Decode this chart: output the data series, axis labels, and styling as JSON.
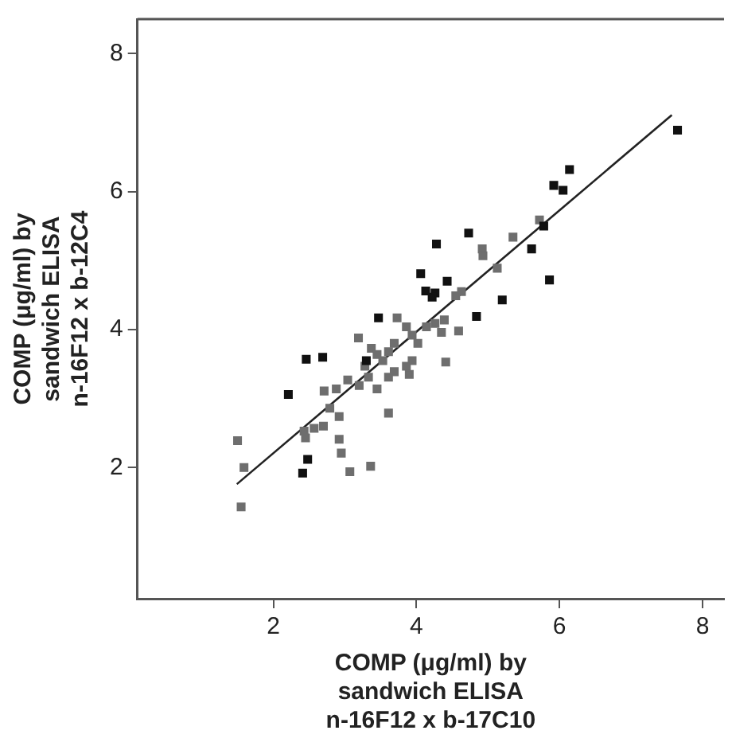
{
  "chart_data": {
    "type": "scatter",
    "xlabel": "COMP (μg/ml) by\nsandwich ELISA\nn-16F12 x b-17C10",
    "ylabel": "COMP (μg/ml) by\nsandwich ELISA\nn-16F12 x b-12C4",
    "xlim": [
      0.1,
      8.3
    ],
    "ylim": [
      0.1,
      8.5
    ],
    "xticks": [
      2,
      4,
      6,
      8
    ],
    "yticks": [
      2,
      4,
      6,
      8
    ],
    "grid": false,
    "legend": false,
    "marker": "square",
    "series": [
      {
        "color": "#111111",
        "x": [
          7.65,
          6.14,
          5.92,
          6.05,
          5.78,
          5.61,
          5.86,
          4.73,
          4.28,
          5.2,
          4.06,
          4.13,
          4.26,
          4.22,
          4.43,
          4.84,
          3.47,
          2.46,
          2.69,
          2.21,
          2.48,
          2.41,
          3.3
        ],
        "values": [
          6.89,
          6.32,
          6.09,
          6.02,
          5.5,
          5.17,
          4.72,
          5.4,
          5.24,
          4.43,
          4.81,
          4.56,
          4.53,
          4.47,
          4.7,
          4.19,
          4.17,
          3.57,
          3.6,
          3.06,
          2.12,
          1.92,
          3.55
        ]
      },
      {
        "color": "#6e6e6e",
        "x": [
          5.72,
          5.35,
          4.92,
          4.93,
          5.13,
          4.63,
          4.55,
          4.59,
          4.41,
          3.61,
          3.36,
          3.07,
          2.95,
          2.92,
          2.92,
          2.79,
          2.7,
          2.57,
          2.45,
          2.43,
          1.5,
          1.59,
          1.55,
          3.19,
          3.37,
          3.45,
          3.53,
          3.61,
          3.69,
          3.86,
          3.94,
          4.02,
          4.14,
          4.26,
          4.35,
          4.39,
          3.69,
          3.86,
          3.94,
          3.9,
          3.33,
          3.2,
          3.04,
          2.88,
          2.71,
          3.45,
          3.61,
          3.28,
          3.73
        ],
        "values": [
          5.59,
          5.34,
          5.17,
          5.07,
          4.89,
          4.55,
          4.49,
          3.98,
          3.53,
          2.79,
          2.02,
          1.94,
          2.21,
          2.41,
          2.74,
          2.86,
          2.6,
          2.57,
          2.43,
          2.53,
          2.39,
          2,
          1.43,
          3.88,
          3.73,
          3.64,
          3.55,
          3.68,
          3.8,
          4.04,
          3.92,
          3.8,
          4.04,
          4.09,
          3.96,
          4.14,
          3.39,
          3.47,
          3.55,
          3.35,
          3.31,
          3.19,
          3.27,
          3.14,
          3.11,
          3.14,
          3.31,
          3.47,
          4.17
        ]
      },
      {
        "type": "line",
        "color": "#222222",
        "marker": "none",
        "x": [
          1.49,
          7.57
        ],
        "values": [
          1.76,
          7.11
        ]
      }
    ]
  }
}
